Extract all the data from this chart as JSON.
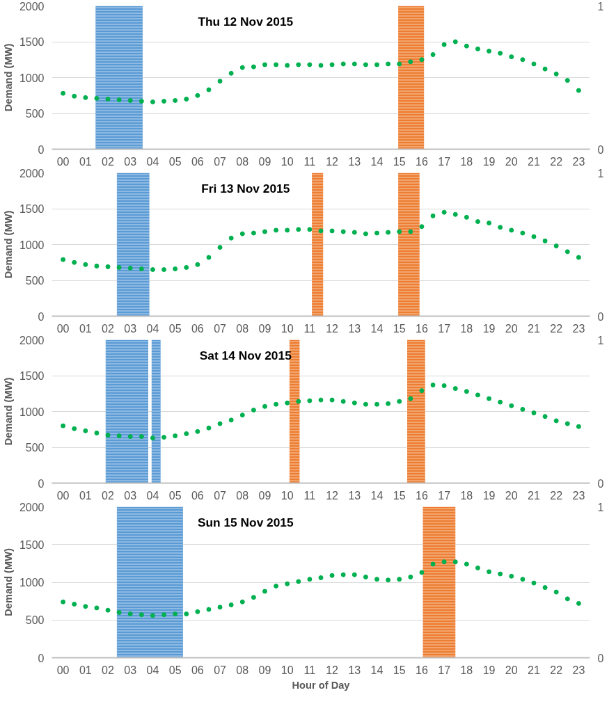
{
  "chart_data": [
    {
      "type": "scatter",
      "title": "Thu 12 Nov 2015",
      "ylabel": "Demand (MW)",
      "marker": "circle",
      "grid": "y",
      "x": [
        0,
        0.5,
        1,
        1.5,
        2,
        2.5,
        3,
        3.5,
        4,
        4.5,
        5,
        5.5,
        6,
        6.5,
        7,
        7.5,
        8,
        8.5,
        9,
        9.5,
        10,
        10.5,
        11,
        11.5,
        12,
        12.5,
        13,
        13.5,
        14,
        14.5,
        15,
        15.5,
        16,
        16.5,
        17,
        17.5,
        18,
        18.5,
        19,
        19.5,
        20,
        20.5,
        21,
        21.5,
        22,
        22.5,
        23
      ],
      "series": [
        {
          "color": "#00b050",
          "values": [
            780,
            740,
            720,
            710,
            700,
            690,
            680,
            670,
            660,
            670,
            680,
            700,
            750,
            830,
            950,
            1060,
            1140,
            1150,
            1180,
            1180,
            1170,
            1180,
            1180,
            1170,
            1180,
            1190,
            1190,
            1180,
            1180,
            1190,
            1190,
            1220,
            1250,
            1320,
            1460,
            1500,
            1440,
            1400,
            1370,
            1340,
            1290,
            1250,
            1190,
            1120,
            1050,
            960,
            820
          ]
        }
      ],
      "xlim": [
        -0.5,
        23.5
      ],
      "xticks": [
        {
          "value": 0,
          "label": "00"
        },
        {
          "value": 1,
          "label": "01"
        },
        {
          "value": 2,
          "label": "02"
        },
        {
          "value": 3,
          "label": "03"
        },
        {
          "value": 4,
          "label": "04"
        },
        {
          "value": 5,
          "label": "05"
        },
        {
          "value": 6,
          "label": "06"
        },
        {
          "value": 7,
          "label": "07"
        },
        {
          "value": 8,
          "label": "08"
        },
        {
          "value": 9,
          "label": "09"
        },
        10,
        11,
        12,
        13,
        14,
        15,
        16,
        17,
        18,
        19,
        20,
        21,
        22,
        23
      ],
      "ylim": [
        0,
        2000
      ],
      "yticks": [
        0,
        500,
        1000,
        1500,
        2000
      ],
      "y2lim": [
        0,
        1
      ],
      "y2ticks": [
        0,
        1
      ],
      "bands": [
        {
          "axis": "x",
          "from": 1.45,
          "to": 3.55,
          "color": "#5b9bd5"
        },
        {
          "axis": "x",
          "from": 14.95,
          "to": 16.1,
          "color": "#ed7d31"
        }
      ]
    },
    {
      "type": "scatter",
      "title": "Fri 13 Nov 2015",
      "ylabel": "Demand (MW)",
      "marker": "circle",
      "grid": "y",
      "x": [
        0,
        0.5,
        1,
        1.5,
        2,
        2.5,
        3,
        3.5,
        4,
        4.5,
        5,
        5.5,
        6,
        6.5,
        7,
        7.5,
        8,
        8.5,
        9,
        9.5,
        10,
        10.5,
        11,
        11.5,
        12,
        12.5,
        13,
        13.5,
        14,
        14.5,
        15,
        15.5,
        16,
        16.5,
        17,
        17.5,
        18,
        18.5,
        19,
        19.5,
        20,
        20.5,
        21,
        21.5,
        22,
        22.5,
        23
      ],
      "series": [
        {
          "color": "#00b050",
          "values": [
            790,
            750,
            720,
            700,
            690,
            680,
            670,
            660,
            650,
            650,
            660,
            680,
            720,
            820,
            960,
            1090,
            1150,
            1160,
            1180,
            1200,
            1200,
            1210,
            1210,
            1190,
            1190,
            1180,
            1170,
            1150,
            1160,
            1170,
            1180,
            1180,
            1250,
            1400,
            1450,
            1420,
            1380,
            1320,
            1300,
            1240,
            1200,
            1160,
            1110,
            1050,
            980,
            900,
            820
          ]
        }
      ],
      "xlim": [
        -0.5,
        23.5
      ],
      "xticks": [
        {
          "value": 0,
          "label": "00"
        },
        {
          "value": 1,
          "label": "01"
        },
        {
          "value": 2,
          "label": "02"
        },
        {
          "value": 3,
          "label": "03"
        },
        {
          "value": 4,
          "label": "04"
        },
        {
          "value": 5,
          "label": "05"
        },
        {
          "value": 6,
          "label": "06"
        },
        {
          "value": 7,
          "label": "07"
        },
        {
          "value": 8,
          "label": "08"
        },
        {
          "value": 9,
          "label": "09"
        },
        10,
        11,
        12,
        13,
        14,
        15,
        16,
        17,
        18,
        19,
        20,
        21,
        22,
        23
      ],
      "ylim": [
        0,
        2000
      ],
      "yticks": [
        0,
        500,
        1000,
        1500,
        2000
      ],
      "y2lim": [
        0,
        1
      ],
      "y2ticks": [
        0,
        1
      ],
      "bands": [
        {
          "axis": "x",
          "from": 2.4,
          "to": 3.85,
          "color": "#5b9bd5"
        },
        {
          "axis": "x",
          "from": 11.1,
          "to": 11.6,
          "color": "#ed7d31"
        },
        {
          "axis": "x",
          "from": 14.95,
          "to": 15.9,
          "color": "#ed7d31"
        }
      ]
    },
    {
      "type": "scatter",
      "title": "Sat 14 Nov 2015",
      "ylabel": "Demand (MW)",
      "marker": "circle",
      "grid": "y",
      "x": [
        0,
        0.5,
        1,
        1.5,
        2,
        2.5,
        3,
        3.5,
        4,
        4.5,
        5,
        5.5,
        6,
        6.5,
        7,
        7.5,
        8,
        8.5,
        9,
        9.5,
        10,
        10.5,
        11,
        11.5,
        12,
        12.5,
        13,
        13.5,
        14,
        14.5,
        15,
        15.5,
        16,
        16.5,
        17,
        17.5,
        18,
        18.5,
        19,
        19.5,
        20,
        20.5,
        21,
        21.5,
        22,
        22.5,
        23
      ],
      "series": [
        {
          "color": "#00b050",
          "values": [
            800,
            760,
            730,
            700,
            670,
            660,
            650,
            650,
            630,
            640,
            660,
            690,
            720,
            770,
            830,
            880,
            950,
            1020,
            1070,
            1100,
            1120,
            1140,
            1150,
            1160,
            1160,
            1140,
            1120,
            1100,
            1100,
            1110,
            1140,
            1180,
            1290,
            1370,
            1360,
            1320,
            1280,
            1230,
            1180,
            1130,
            1080,
            1030,
            980,
            930,
            870,
            830,
            790
          ]
        }
      ],
      "xlim": [
        -0.5,
        23.5
      ],
      "xticks": [
        {
          "value": 0,
          "label": "00"
        },
        {
          "value": 1,
          "label": "01"
        },
        {
          "value": 2,
          "label": "02"
        },
        {
          "value": 3,
          "label": "03"
        },
        {
          "value": 4,
          "label": "04"
        },
        {
          "value": 5,
          "label": "05"
        },
        {
          "value": 6,
          "label": "06"
        },
        {
          "value": 7,
          "label": "07"
        },
        {
          "value": 8,
          "label": "08"
        },
        {
          "value": 9,
          "label": "09"
        },
        10,
        11,
        12,
        13,
        14,
        15,
        16,
        17,
        18,
        19,
        20,
        21,
        22,
        23
      ],
      "ylim": [
        0,
        2000
      ],
      "yticks": [
        0,
        500,
        1000,
        1500,
        2000
      ],
      "y2lim": [
        0,
        1
      ],
      "y2ticks": [
        0,
        1
      ],
      "bands": [
        {
          "axis": "x",
          "from": 1.9,
          "to": 3.8,
          "color": "#5b9bd5"
        },
        {
          "axis": "x",
          "from": 3.95,
          "to": 4.35,
          "color": "#5b9bd5"
        },
        {
          "axis": "x",
          "from": 10.1,
          "to": 10.55,
          "color": "#ed7d31"
        },
        {
          "axis": "x",
          "from": 15.35,
          "to": 16.15,
          "color": "#ed7d31"
        }
      ]
    },
    {
      "type": "scatter",
      "title": "Sun 15 Nov 2015",
      "ylabel": "Demand (MW)",
      "xlabel": "Hour of Day",
      "marker": "circle",
      "grid": "y",
      "x": [
        0,
        0.5,
        1,
        1.5,
        2,
        2.5,
        3,
        3.5,
        4,
        4.5,
        5,
        5.5,
        6,
        6.5,
        7,
        7.5,
        8,
        8.5,
        9,
        9.5,
        10,
        10.5,
        11,
        11.5,
        12,
        12.5,
        13,
        13.5,
        14,
        14.5,
        15,
        15.5,
        16,
        16.5,
        17,
        17.5,
        18,
        18.5,
        19,
        19.5,
        20,
        20.5,
        21,
        21.5,
        22,
        22.5,
        23
      ],
      "series": [
        {
          "color": "#00b050",
          "values": [
            740,
            710,
            680,
            660,
            630,
            600,
            580,
            570,
            560,
            570,
            580,
            580,
            610,
            640,
            670,
            700,
            740,
            800,
            880,
            950,
            980,
            1010,
            1040,
            1060,
            1090,
            1100,
            1100,
            1070,
            1040,
            1030,
            1040,
            1070,
            1130,
            1240,
            1270,
            1270,
            1240,
            1190,
            1140,
            1110,
            1080,
            1040,
            990,
            930,
            870,
            780,
            720
          ]
        }
      ],
      "xlim": [
        -0.5,
        23.5
      ],
      "xticks": [
        {
          "value": 0,
          "label": "00"
        },
        {
          "value": 1,
          "label": "01"
        },
        {
          "value": 2,
          "label": "02"
        },
        {
          "value": 3,
          "label": "03"
        },
        {
          "value": 4,
          "label": "04"
        },
        {
          "value": 5,
          "label": "05"
        },
        {
          "value": 6,
          "label": "06"
        },
        {
          "value": 7,
          "label": "07"
        },
        {
          "value": 8,
          "label": "08"
        },
        {
          "value": 9,
          "label": "09"
        },
        10,
        11,
        12,
        13,
        14,
        15,
        16,
        17,
        18,
        19,
        20,
        21,
        22,
        23
      ],
      "ylim": [
        0,
        2000
      ],
      "yticks": [
        0,
        500,
        1000,
        1500,
        2000
      ],
      "y2lim": [
        0,
        1
      ],
      "y2ticks": [
        0,
        1
      ],
      "bands": [
        {
          "axis": "x",
          "from": 2.4,
          "to": 5.35,
          "color": "#5b9bd5"
        },
        {
          "axis": "x",
          "from": 16.05,
          "to": 17.5,
          "color": "#ed7d31"
        }
      ]
    }
  ]
}
